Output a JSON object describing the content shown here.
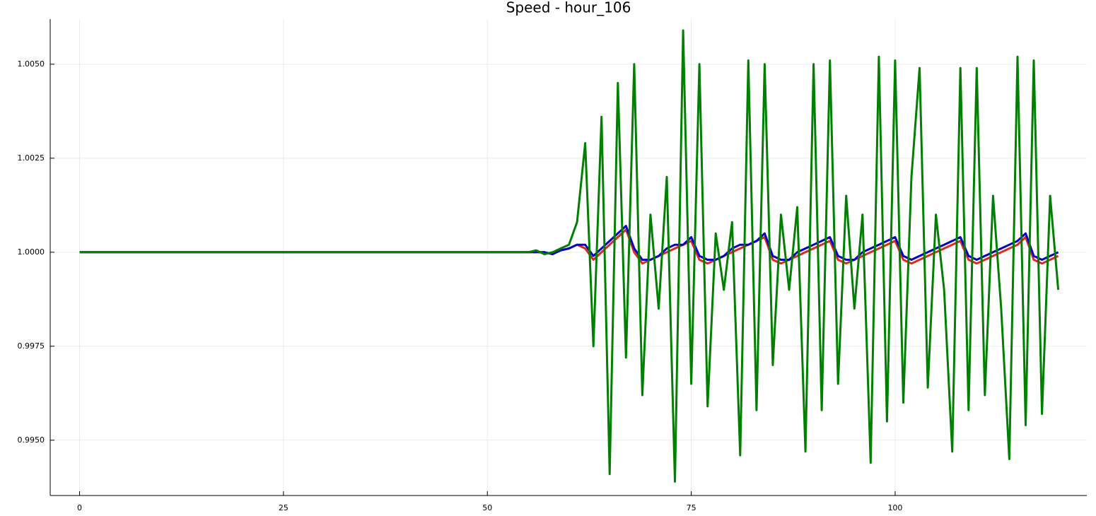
{
  "chart_data": {
    "type": "line",
    "title": "Speed - hour_106",
    "x": [
      0,
      5,
      10,
      15,
      20,
      25,
      30,
      35,
      40,
      45,
      50,
      55,
      56,
      57,
      58,
      59,
      60,
      61,
      62,
      63,
      64,
      65,
      66,
      67,
      68,
      69,
      70,
      71,
      72,
      73,
      74,
      75,
      76,
      77,
      78,
      79,
      80,
      81,
      82,
      83,
      84,
      85,
      86,
      87,
      88,
      89,
      90,
      91,
      92,
      93,
      94,
      95,
      96,
      97,
      98,
      99,
      100,
      101,
      102,
      103,
      104,
      105,
      106,
      107,
      108,
      109,
      110,
      111,
      112,
      113,
      114,
      115,
      116,
      117,
      118,
      119,
      120
    ],
    "series": [
      {
        "color": "#e0281e",
        "values": [
          1,
          1,
          1,
          1,
          1,
          1,
          1,
          1,
          1,
          1,
          1,
          1,
          1,
          1,
          0.99995,
          1.00005,
          1.0001,
          1.0002,
          1.0001,
          0.9998,
          1.0,
          1.0002,
          1.0004,
          1.0006,
          1.0,
          0.9997,
          0.9998,
          0.9999,
          1.0,
          1.0001,
          1.0002,
          1.0003,
          0.9998,
          0.9997,
          0.9998,
          0.9999,
          1.0,
          1.0001,
          1.0002,
          1.0003,
          1.0004,
          0.9998,
          0.9997,
          0.9998,
          0.9999,
          1.0,
          1.0001,
          1.0002,
          1.0003,
          0.9998,
          0.9997,
          0.9998,
          0.9999,
          1.0,
          1.0001,
          1.0002,
          1.0003,
          0.9998,
          0.9997,
          0.9998,
          0.9999,
          1.0,
          1.0001,
          1.0002,
          1.0003,
          0.9998,
          0.9997,
          0.9998,
          0.9999,
          1.0,
          1.0001,
          1.0002,
          1.0004,
          0.9998,
          0.9997,
          0.9998,
          0.9999
        ]
      },
      {
        "color": "#0000cc",
        "values": [
          1,
          1,
          1,
          1,
          1,
          1,
          1,
          1,
          1,
          1,
          1,
          1,
          1,
          1,
          0.99995,
          1.00005,
          1.0001,
          1.0002,
          1.0002,
          0.9999,
          1.0001,
          1.0003,
          1.0005,
          1.0007,
          1.0001,
          0.9998,
          0.9998,
          0.9999,
          1.0001,
          1.0002,
          1.0002,
          1.0004,
          0.9999,
          0.9998,
          0.9998,
          0.9999,
          1.0001,
          1.0002,
          1.0002,
          1.0003,
          1.0005,
          0.9999,
          0.9998,
          0.9998,
          1.0,
          1.0001,
          1.0002,
          1.0003,
          1.0004,
          0.9999,
          0.9998,
          0.9998,
          1.0,
          1.0001,
          1.0002,
          1.0003,
          1.0004,
          0.9999,
          0.9998,
          0.9999,
          1.0,
          1.0001,
          1.0002,
          1.0003,
          1.0004,
          0.9999,
          0.9998,
          0.9999,
          1.0,
          1.0001,
          1.0002,
          1.0003,
          1.0005,
          0.9999,
          0.9998,
          0.9999,
          1.0
        ]
      },
      {
        "color": "#008000",
        "values": [
          1,
          1,
          1,
          1,
          1,
          1,
          1,
          1,
          1,
          1,
          1,
          1,
          1.00005,
          0.99995,
          1.0,
          1.0001,
          1.0002,
          1.0008,
          1.0029,
          0.9975,
          1.0036,
          0.9941,
          1.0045,
          0.9972,
          1.005,
          0.9962,
          1.001,
          0.9985,
          1.002,
          0.9939,
          1.0059,
          0.9965,
          1.005,
          0.9959,
          1.0005,
          0.999,
          1.0008,
          0.9946,
          1.0051,
          0.9958,
          1.005,
          0.997,
          1.001,
          0.999,
          1.0012,
          0.9947,
          1.005,
          0.9958,
          1.0051,
          0.9965,
          1.0015,
          0.9985,
          1.001,
          0.9944,
          1.0052,
          0.9955,
          1.0051,
          0.996,
          1.002,
          1.0049,
          0.9964,
          1.001,
          0.999,
          0.9947,
          1.0049,
          0.9958,
          1.0049,
          0.9962,
          1.0015,
          0.9985,
          0.9945,
          1.0052,
          0.9954,
          1.0051,
          0.9957,
          1.0015,
          0.999
        ]
      }
    ],
    "xlim": [
      -3.6,
      123.5
    ],
    "xticks": [
      0,
      25,
      50,
      75,
      100
    ],
    "ylim": [
      0.99353,
      1.0062
    ],
    "yticks": [
      {
        "value": 0.995,
        "label": "0.9950"
      },
      {
        "value": 0.9975,
        "label": "0.9975"
      },
      {
        "value": 1.0,
        "label": "1.0000"
      },
      {
        "value": 1.0025,
        "label": "1.0025"
      },
      {
        "value": 1.005,
        "label": "1.0050"
      }
    ],
    "grid": true
  }
}
